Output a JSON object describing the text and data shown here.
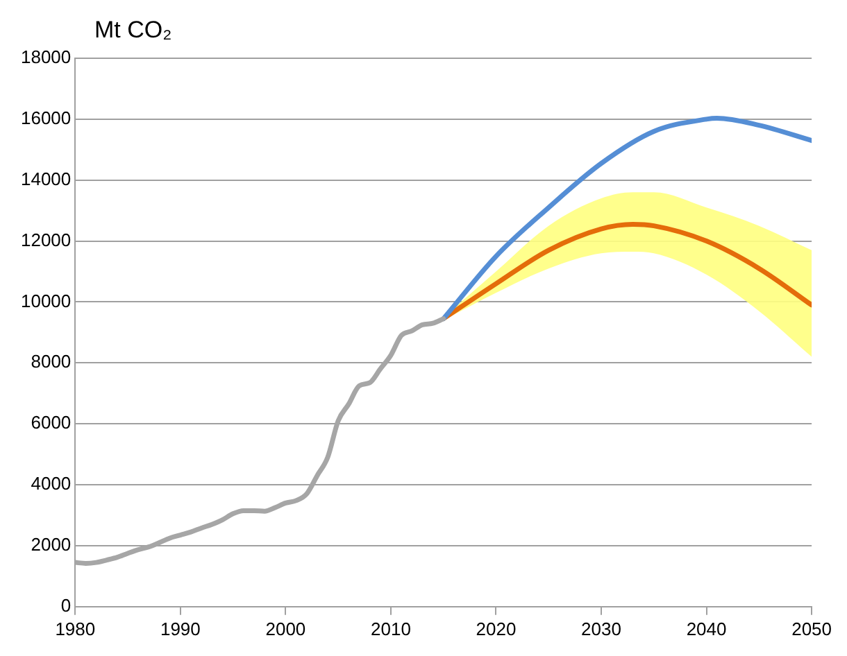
{
  "chart_data": {
    "type": "line",
    "ylabel": "Mt CO₂",
    "xlim": [
      1980,
      2050
    ],
    "xticks": [
      1980,
      1990,
      2000,
      2010,
      2020,
      2030,
      2040,
      2050
    ],
    "ylim": [
      0,
      18000
    ],
    "yticks": [
      0,
      2000,
      4000,
      6000,
      8000,
      10000,
      12000,
      14000,
      16000,
      18000
    ],
    "grid": "y",
    "legend": false,
    "marker": "none",
    "line_style": "solid",
    "series": [
      {
        "color": "#a6a6a6",
        "x": [
          1980,
          1981,
          1982,
          1983,
          1984,
          1985,
          1986,
          1987,
          1988,
          1989,
          1990,
          1991,
          1992,
          1993,
          1994,
          1995,
          1996,
          1997,
          1998,
          1999,
          2000,
          2001,
          2002,
          2003,
          2004,
          2005,
          2006,
          2007,
          2008,
          2009,
          2010,
          2011,
          2012,
          2013,
          2014,
          2015
        ],
        "values": [
          1450,
          1420,
          1450,
          1530,
          1620,
          1750,
          1870,
          1960,
          2100,
          2250,
          2350,
          2450,
          2580,
          2700,
          2850,
          3050,
          3150,
          3150,
          3130,
          3250,
          3400,
          3480,
          3700,
          4300,
          4900,
          6100,
          6650,
          7250,
          7350,
          7800,
          8250,
          8900,
          9050,
          9250,
          9300,
          9450
        ]
      },
      {
        "color": "#558ed5",
        "x": [
          2015,
          2020,
          2025,
          2030,
          2035,
          2040,
          2041,
          2045,
          2050
        ],
        "values": [
          9450,
          11500,
          13100,
          14550,
          15600,
          16000,
          16030,
          15800,
          15300
        ]
      },
      {
        "color": "#e46c0a",
        "x": [
          2015,
          2020,
          2025,
          2030,
          2033,
          2035,
          2040,
          2045,
          2050
        ],
        "values": [
          9450,
          10600,
          11700,
          12400,
          12550,
          12500,
          12000,
          11100,
          9900
        ],
        "lower": [
          9400,
          10300,
          11100,
          11600,
          11650,
          11600,
          10900,
          9700,
          8200
        ],
        "upper": [
          9500,
          11000,
          12500,
          13400,
          13600,
          13600,
          13100,
          12500,
          11700
        ]
      }
    ]
  }
}
